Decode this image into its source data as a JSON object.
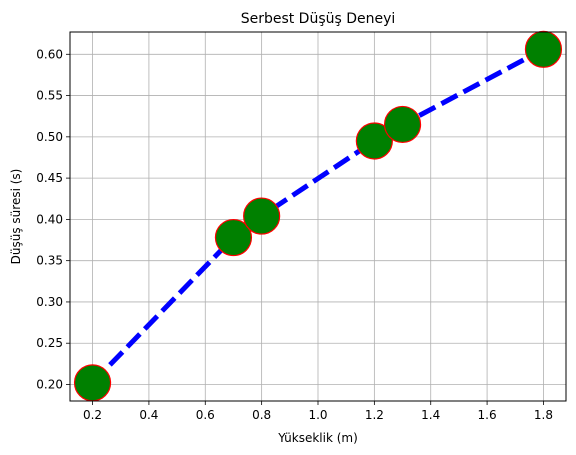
{
  "chart_data": {
    "type": "line",
    "title": "Serbest Düşüş Deneyi",
    "xlabel": "Yükseklik (m)",
    "ylabel": "Düşüş süresi (s)",
    "xlim": [
      0.12,
      1.88
    ],
    "ylim": [
      0.18,
      0.627
    ],
    "xticks": [
      "0.2",
      "0.4",
      "0.6",
      "0.8",
      "1.0",
      "1.2",
      "1.4",
      "1.6",
      "1.8"
    ],
    "yticks": [
      "0.20",
      "0.25",
      "0.30",
      "0.35",
      "0.40",
      "0.45",
      "0.50",
      "0.55",
      "0.60"
    ],
    "grid": true,
    "series": [
      {
        "x": [
          0.2,
          0.7,
          0.8,
          1.2,
          1.3,
          1.8
        ],
        "y": [
          0.202,
          0.378,
          0.404,
          0.495,
          0.515,
          0.606
        ],
        "line_color": "#0000ff",
        "line_style": "dashed",
        "marker_face": "#008000",
        "marker_edge": "#ff0000"
      }
    ]
  }
}
